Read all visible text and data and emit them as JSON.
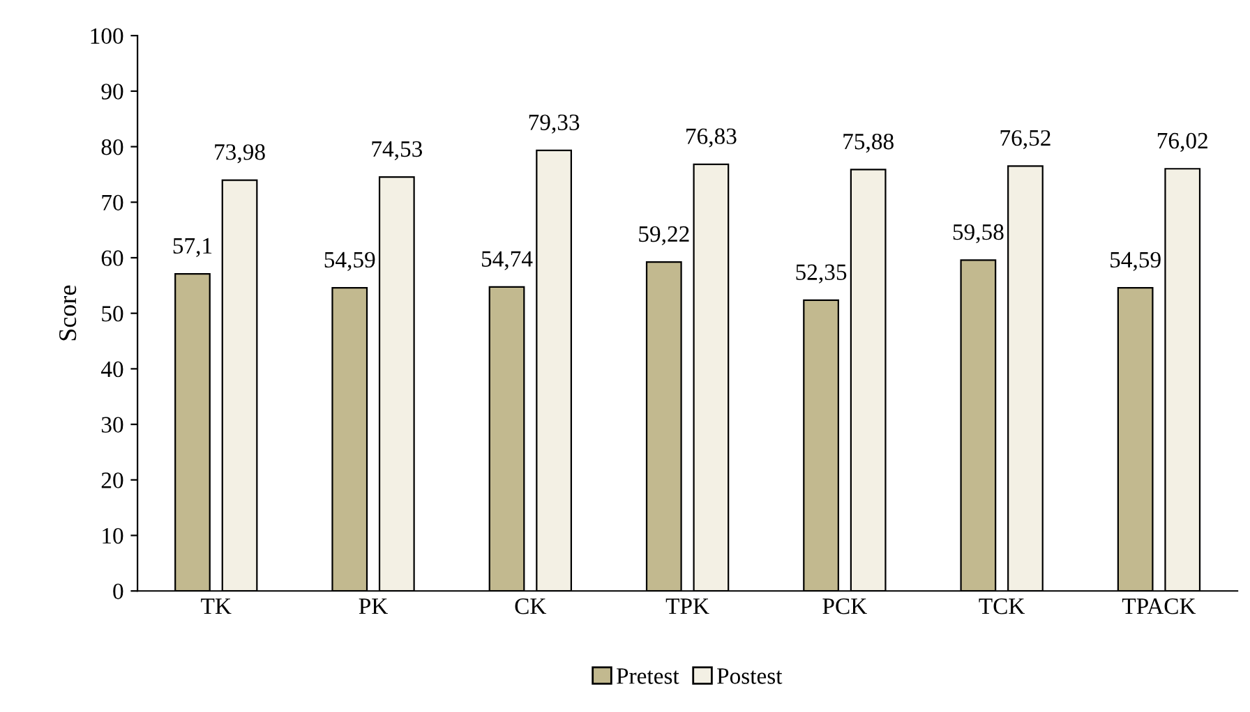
{
  "chart_data": {
    "type": "bar",
    "ylabel": "Score",
    "categories": [
      "TK",
      "PK",
      "CK",
      "TPK",
      "PCK",
      "TCK",
      "TPACK"
    ],
    "series": [
      {
        "name": "Pretest",
        "color": "#c2b98f",
        "values": [
          57.1,
          54.59,
          54.74,
          59.22,
          52.35,
          59.58,
          54.59
        ],
        "value_labels": [
          "57,1",
          "54,59",
          "54,74",
          "59,22",
          "52,35",
          "59,58",
          "54,59"
        ]
      },
      {
        "name": "Postest",
        "color": "#f3f0e4",
        "values": [
          73.98,
          74.53,
          79.33,
          76.83,
          75.88,
          76.52,
          76.02
        ],
        "value_labels": [
          "73,98",
          "74,53",
          "79,33",
          "76,83",
          "75,88",
          "76,52",
          "76,02"
        ]
      }
    ],
    "ylim": [
      0,
      100
    ],
    "yticks": [
      0,
      10,
      20,
      30,
      40,
      50,
      60,
      70,
      80,
      90,
      100
    ],
    "grid": false,
    "legend": "bottom"
  }
}
